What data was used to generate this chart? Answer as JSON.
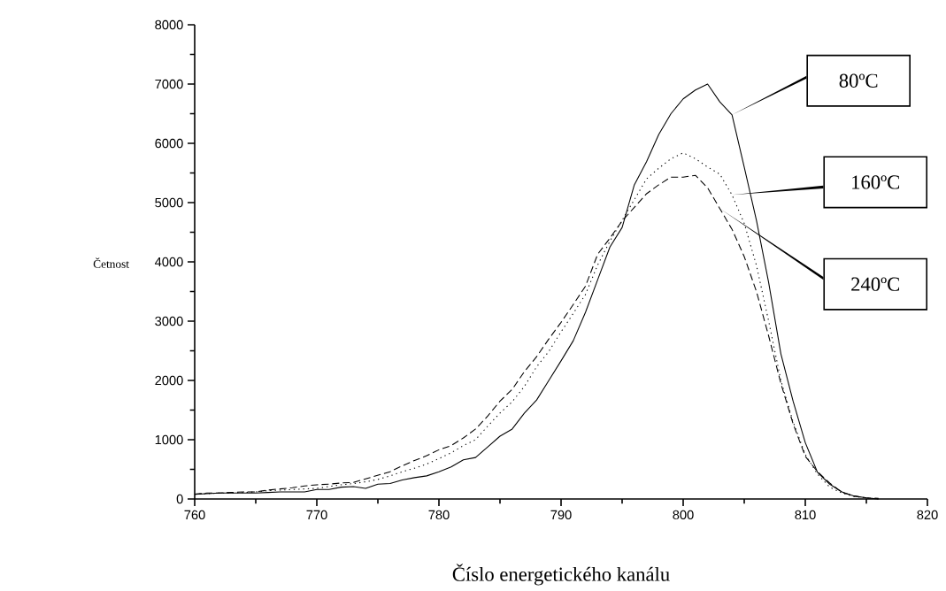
{
  "chart_data": {
    "type": "line",
    "xlabel": "Číslo energetického kanálu",
    "ylabel": "Četnost",
    "x": [
      760,
      761,
      762,
      763,
      764,
      765,
      766,
      767,
      768,
      769,
      770,
      771,
      772,
      773,
      774,
      775,
      776,
      777,
      778,
      779,
      780,
      781,
      782,
      783,
      784,
      785,
      786,
      787,
      788,
      789,
      790,
      791,
      792,
      793,
      794,
      795,
      796,
      797,
      798,
      799,
      800,
      801,
      802,
      803,
      804,
      805,
      806,
      807,
      808,
      809,
      810,
      811,
      812,
      813,
      814,
      815,
      816
    ],
    "series": [
      {
        "name": "80ºC",
        "color": "#000000",
        "line_style": "solid",
        "values": [
          80,
          90,
          100,
          100,
          100,
          100,
          110,
          120,
          120,
          120,
          160,
          160,
          200,
          210,
          180,
          250,
          260,
          320,
          360,
          390,
          460,
          540,
          660,
          700,
          880,
          1060,
          1180,
          1450,
          1670,
          2000,
          2330,
          2670,
          3150,
          3700,
          4250,
          4580,
          5300,
          5690,
          6150,
          6500,
          6750,
          6900,
          7000,
          6700,
          6480,
          5600,
          4700,
          3650,
          2450,
          1650,
          950,
          450,
          250,
          120,
          50,
          20,
          0
        ]
      },
      {
        "name": "160ºC",
        "color": "#000000",
        "line_style": "dotted",
        "values": [
          80,
          90,
          100,
          100,
          110,
          120,
          140,
          150,
          160,
          170,
          180,
          210,
          240,
          260,
          290,
          330,
          390,
          460,
          520,
          590,
          680,
          780,
          900,
          1000,
          1230,
          1450,
          1640,
          1900,
          2230,
          2490,
          2820,
          3130,
          3450,
          3950,
          4350,
          4700,
          5050,
          5400,
          5580,
          5740,
          5840,
          5740,
          5600,
          5480,
          5130,
          4650,
          3940,
          3000,
          2000,
          1300,
          750,
          420,
          200,
          100,
          40,
          20,
          0
        ]
      },
      {
        "name": "240ºC",
        "color": "#000000",
        "line_style": "dashed",
        "values": [
          80,
          100,
          100,
          110,
          120,
          120,
          150,
          170,
          190,
          220,
          240,
          250,
          270,
          280,
          340,
          400,
          460,
          560,
          650,
          730,
          830,
          900,
          1030,
          1180,
          1400,
          1650,
          1850,
          2150,
          2400,
          2700,
          2980,
          3280,
          3590,
          4130,
          4400,
          4690,
          4920,
          5150,
          5300,
          5430,
          5430,
          5460,
          5250,
          4900,
          4550,
          4090,
          3500,
          2750,
          1950,
          1270,
          720,
          460,
          270,
          110,
          50,
          20,
          10
        ]
      }
    ],
    "xlim": [
      760,
      820
    ],
    "ylim": [
      0,
      8000
    ],
    "xticks": [
      760,
      {
        "value": 765,
        "label": null
      },
      770,
      {
        "value": 775,
        "label": null
      },
      780,
      {
        "value": 785,
        "label": null
      },
      790,
      {
        "value": 795,
        "label": null
      },
      800,
      {
        "value": 805,
        "label": null
      },
      810,
      {
        "value": 815,
        "label": null
      },
      820
    ],
    "yticks": [
      0,
      {
        "value": 500,
        "label": null
      },
      1000,
      {
        "value": 1500,
        "label": null
      },
      2000,
      {
        "value": 2500,
        "label": null
      },
      3000,
      {
        "value": 3500,
        "label": null
      },
      4000,
      {
        "value": 4500,
        "label": null
      },
      5000,
      {
        "value": 5500,
        "label": null
      },
      6000,
      {
        "value": 6500,
        "label": null
      },
      7000,
      {
        "value": 7500,
        "label": null
      },
      8000
    ],
    "grid": false,
    "legend": "right"
  }
}
